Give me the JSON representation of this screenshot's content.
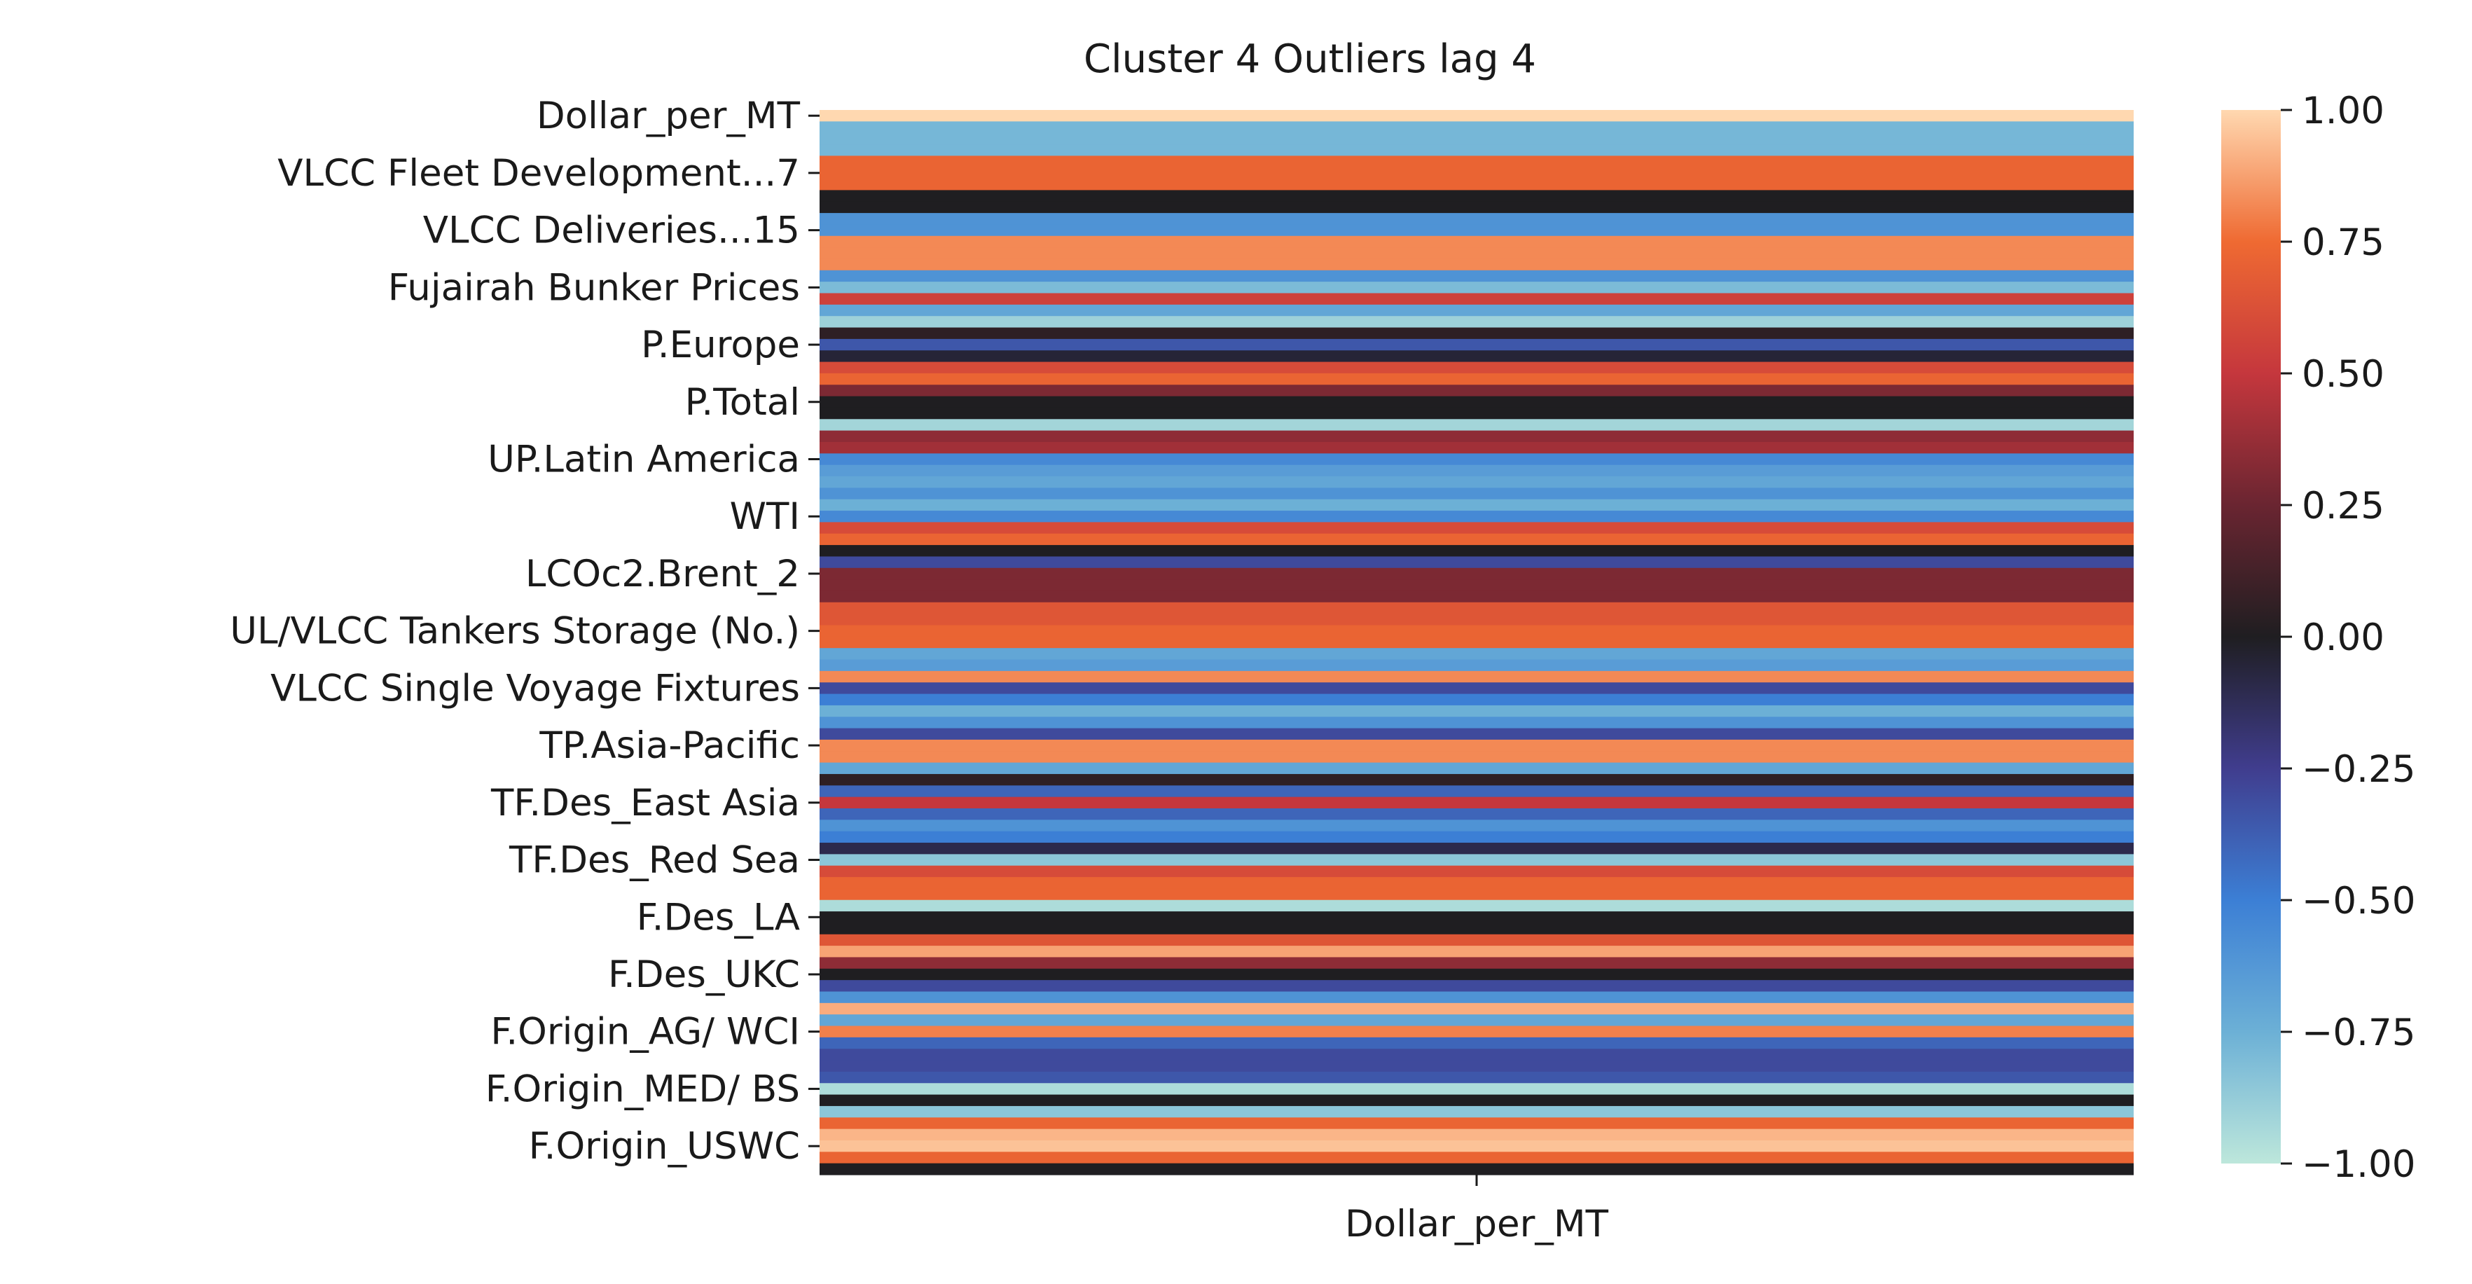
{
  "chart_data": {
    "type": "heatmap",
    "title": "Cluster 4 Outliers lag 4",
    "x_categories": [
      "Dollar_per_MT"
    ],
    "y_tick_labels": [
      "Dollar_per_MT",
      "VLCC Fleet Development...7",
      "VLCC Deliveries...15",
      "Fujairah Bunker Prices",
      "P.Europe",
      "P.Total",
      "UP.Latin America",
      "WTI",
      "LCOc2.Brent_2",
      "UL/VLCC Tankers Storage (No.)",
      "VLCC Single Voyage Fixtures",
      "TP.Asia-Pacific",
      "TF.Des_East Asia",
      "TF.Des_Red Sea",
      "F.Des_LA",
      "F.Des_UKC",
      "F.Origin_AG/ WCI",
      "F.Origin_MED/ BS",
      "F.Origin_USWC"
    ],
    "tick_every_n_rows": 5,
    "values": [
      1.0,
      -0.78,
      -0.78,
      -0.78,
      0.72,
      0.72,
      0.72,
      0.0,
      0.0,
      -0.6,
      -0.6,
      0.82,
      0.82,
      0.82,
      -0.6,
      -0.8,
      0.55,
      -0.7,
      -0.9,
      0.05,
      -0.35,
      -0.05,
      0.6,
      0.72,
      0.3,
      0.0,
      0.0,
      -0.92,
      0.35,
      0.4,
      -0.55,
      -0.65,
      -0.7,
      -0.6,
      -0.75,
      -0.55,
      0.6,
      0.72,
      0.0,
      -0.3,
      0.3,
      0.3,
      0.3,
      0.65,
      0.65,
      0.72,
      0.72,
      -0.7,
      -0.65,
      0.82,
      -0.3,
      -0.5,
      -0.75,
      -0.6,
      -0.3,
      0.82,
      0.82,
      -0.7,
      0.05,
      -0.4,
      0.5,
      -0.4,
      -0.6,
      -0.5,
      -0.1,
      -0.85,
      0.6,
      0.72,
      0.72,
      -0.95,
      0.0,
      0.0,
      0.65,
      0.88,
      0.35,
      0.0,
      -0.3,
      -0.6,
      0.9,
      -0.7,
      0.8,
      -0.4,
      -0.3,
      -0.3,
      -0.35,
      -0.95,
      0.0,
      -0.85,
      0.72,
      0.92,
      0.95,
      0.72,
      0.0
    ],
    "vmin": -1.0,
    "vmax": 1.0,
    "colormap": "icefire",
    "colorbar_ticks": [
      1.0,
      0.75,
      0.5,
      0.25,
      0.0,
      -0.25,
      -0.5,
      -0.75,
      -1.0
    ],
    "colorbar_tick_labels": [
      "1.00",
      "0.75",
      "0.50",
      "0.25",
      "0.00",
      "−0.25",
      "−0.50",
      "−0.75",
      "−1.00"
    ],
    "grid": false,
    "colorbar_placement": "right"
  }
}
